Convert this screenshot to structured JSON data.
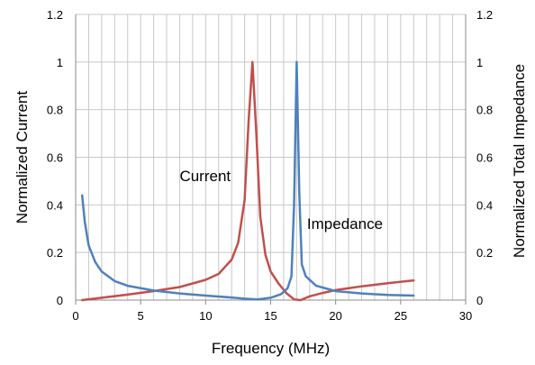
{
  "chart_data": {
    "type": "line",
    "title": "",
    "xlabel": "Frequency (MHz)",
    "ylabel_left": "Normalized Current",
    "ylabel_right": "Normalized Total Impedance",
    "xlim": [
      0,
      30
    ],
    "ylim": [
      0,
      1.2
    ],
    "x_ticks": [
      "0",
      "5",
      "10",
      "15",
      "20",
      "25",
      "30"
    ],
    "y_ticks": [
      "0",
      "0.2",
      "0.4",
      "0.6",
      "0.8",
      "1",
      "1.2"
    ],
    "grid": true,
    "legend": "none",
    "series": [
      {
        "name": "Current",
        "color": "#c0504d",
        "axis": "left",
        "points": [
          [
            0.5,
            0.0
          ],
          [
            2,
            0.01
          ],
          [
            4,
            0.023
          ],
          [
            6,
            0.038
          ],
          [
            8,
            0.055
          ],
          [
            10,
            0.085
          ],
          [
            11,
            0.11
          ],
          [
            12,
            0.17
          ],
          [
            12.5,
            0.24
          ],
          [
            13,
            0.42
          ],
          [
            13.3,
            0.75
          ],
          [
            13.6,
            1.0
          ],
          [
            13.9,
            0.7
          ],
          [
            14.2,
            0.35
          ],
          [
            14.6,
            0.19
          ],
          [
            15,
            0.12
          ],
          [
            15.6,
            0.07
          ],
          [
            16.2,
            0.03
          ],
          [
            16.8,
            0.003
          ],
          [
            17.3,
            0.0
          ],
          [
            18,
            0.016
          ],
          [
            19,
            0.03
          ],
          [
            20,
            0.042
          ],
          [
            22,
            0.058
          ],
          [
            24,
            0.071
          ],
          [
            26,
            0.083
          ]
        ]
      },
      {
        "name": "Impedance",
        "color": "#4f81bd",
        "axis": "right",
        "points": [
          [
            0.5,
            0.44
          ],
          [
            0.7,
            0.33
          ],
          [
            1,
            0.23
          ],
          [
            1.5,
            0.16
          ],
          [
            2,
            0.12
          ],
          [
            3,
            0.08
          ],
          [
            4,
            0.06
          ],
          [
            6,
            0.04
          ],
          [
            8,
            0.028
          ],
          [
            10,
            0.019
          ],
          [
            12,
            0.011
          ],
          [
            13,
            0.006
          ],
          [
            14,
            0.003
          ],
          [
            15,
            0.01
          ],
          [
            15.8,
            0.025
          ],
          [
            16.3,
            0.05
          ],
          [
            16.6,
            0.1
          ],
          [
            16.8,
            0.4
          ],
          [
            17.0,
            1.0
          ],
          [
            17.2,
            0.45
          ],
          [
            17.4,
            0.15
          ],
          [
            17.7,
            0.1
          ],
          [
            18.5,
            0.06
          ],
          [
            20,
            0.038
          ],
          [
            22,
            0.028
          ],
          [
            24,
            0.022
          ],
          [
            26,
            0.019
          ]
        ]
      }
    ],
    "annotations": [
      {
        "text": "Current",
        "x": 8.0,
        "y": 0.5
      },
      {
        "text": "Impedance",
        "x": 17.8,
        "y": 0.3
      }
    ]
  }
}
